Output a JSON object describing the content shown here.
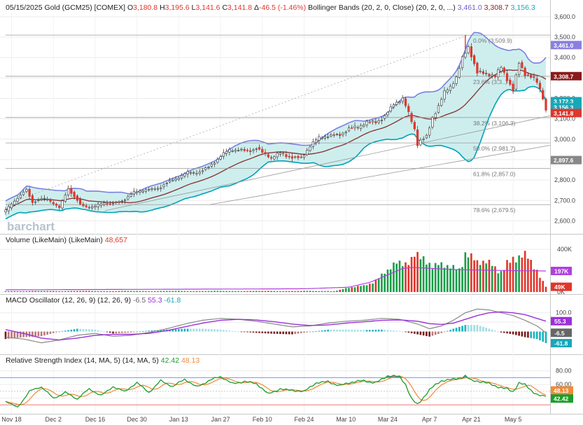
{
  "header": {
    "date": "05/15/2025",
    "symbol": "Gold (GCM25) [COMEX]",
    "o_label": "O",
    "o_value": "3,180.8",
    "h_label": "H",
    "h_value": "3,195.6",
    "l_label": "L",
    "l_value": "3,141.6",
    "c_label": "C",
    "c_value": "3,141.8",
    "chg_label": "Δ",
    "chg_value": "-46.5 (-1.46%)",
    "bb_title": "Bollinger Bands (20, 2, 0, Close)",
    "bb_params": "(20, 2, 0, ...)",
    "bb_upper": "3,461.0",
    "bb_mid": "3,308.7",
    "bb_lower": "3,156.3"
  },
  "logo": "barchart",
  "colors": {
    "up": "#1a9e4a",
    "down": "#e0362c",
    "band_fill": "#c9ecec",
    "band_upper": "#7b7fe0",
    "band_lower": "#00a3b8",
    "sma": "#8b3a3a",
    "vol_ma": "#b040e0",
    "macd_line": "#888888",
    "signal": "#9b30d9",
    "hist_pos": "#17b3c0",
    "hist_neg": "#7a1a1a",
    "rsi": "#1a9e2a",
    "rsi_ma": "#f08a3a"
  },
  "chart_data": [
    {
      "name": "price",
      "type": "candlestick",
      "y_ticks": [
        "3,600.0",
        "3,500.0",
        "3,400.0",
        "3,300.0",
        "3,200.0",
        "3,100.0",
        "3,000.0",
        "2,900.0",
        "2,800.0",
        "2,700.0",
        "2,600.0"
      ],
      "ylim": [
        2550,
        3620
      ],
      "x_ticks": [
        "Nov 18",
        "Dec 2",
        "Dec 16",
        "Dec 30",
        "Jan 13",
        "Jan 27",
        "Feb 10",
        "Feb 24",
        "Mar 10",
        "Mar 24",
        "Apr 7",
        "Apr 21",
        "May 5"
      ],
      "close_key": [
        [
          0,
          2640
        ],
        [
          3,
          2700
        ],
        [
          7,
          2760
        ],
        [
          9,
          2700
        ],
        [
          14,
          2700
        ],
        [
          18,
          2660
        ],
        [
          21,
          2770
        ],
        [
          25,
          2680
        ],
        [
          28,
          2660
        ],
        [
          30,
          2660
        ],
        [
          33,
          2690
        ],
        [
          36,
          2690
        ],
        [
          40,
          2710
        ],
        [
          43,
          2730
        ],
        [
          47,
          2750
        ],
        [
          50,
          2760
        ],
        [
          53,
          2785
        ],
        [
          57,
          2800
        ],
        [
          61,
          2830
        ],
        [
          64,
          2840
        ],
        [
          68,
          2870
        ],
        [
          72,
          2910
        ],
        [
          75,
          2940
        ],
        [
          78,
          2950
        ],
        [
          81,
          2950
        ],
        [
          84,
          2960
        ],
        [
          86,
          2930
        ],
        [
          89,
          2900
        ],
        [
          92,
          2930
        ],
        [
          96,
          2920
        ],
        [
          99,
          2910
        ],
        [
          102,
          2960
        ],
        [
          105,
          3000
        ],
        [
          108,
          3020
        ],
        [
          112,
          3030
        ],
        [
          115,
          3050
        ],
        [
          118,
          3050
        ],
        [
          121,
          3080
        ],
        [
          124,
          3090
        ],
        [
          127,
          3120
        ],
        [
          130,
          3170
        ],
        [
          133,
          3190
        ],
        [
          135,
          3120
        ],
        [
          137,
          3050
        ],
        [
          138,
          2980
        ],
        [
          139,
          3000
        ],
        [
          141,
          3020
        ],
        [
          143,
          3110
        ],
        [
          145,
          3160
        ],
        [
          147,
          3220
        ],
        [
          149,
          3250
        ],
        [
          151,
          3300
        ],
        [
          153,
          3400
        ],
        [
          155,
          3460
        ],
        [
          156,
          3420
        ],
        [
          158,
          3330
        ],
        [
          160,
          3320
        ],
        [
          162,
          3310
        ],
        [
          164,
          3300
        ],
        [
          166,
          3350
        ],
        [
          168,
          3300
        ],
        [
          170,
          3250
        ],
        [
          172,
          3380
        ],
        [
          174,
          3320
        ],
        [
          176,
          3300
        ],
        [
          178,
          3270
        ],
        [
          180,
          3200
        ],
        [
          181,
          3141.8
        ]
      ],
      "candle_count": 182,
      "bollinger": {
        "period": 20,
        "stddev": 2
      },
      "fib_levels": [
        {
          "label": "0.0% (3,509.9)",
          "value": 3509.9
        },
        {
          "label": "23.6% (3,3..)",
          "value": 3308.1
        },
        {
          "label": "38.2% (3,106.3)",
          "value": 3106.3
        },
        {
          "label": "50.0% (2,981.7)",
          "value": 2981.7
        },
        {
          "label": "61.8% (2,857.0)",
          "value": 2857.0
        },
        {
          "label": "78.6% (2,679.5)",
          "value": 2679.5
        }
      ],
      "price_tags": [
        {
          "label": "3,461.0",
          "value": 3461.0,
          "color": "#8a7fe0"
        },
        {
          "label": "3,308.7",
          "value": 3308.7,
          "color": "#8b1a1a"
        },
        {
          "label": "3,172.3",
          "value": 3172.3,
          "color": "#17a7b8"
        },
        {
          "label": "3,156.3",
          "value": 3156.3,
          "color": "#17a7b8"
        },
        {
          "label": "3,141.8",
          "value": 3141.8,
          "color": "#e0362c"
        },
        {
          "label": "2,897.6",
          "value": 2897.6,
          "color": "#888888"
        }
      ]
    },
    {
      "name": "volume",
      "type": "bar",
      "title": "Volume (LikeMain) (LikeMain)",
      "last_value": "48,657",
      "y_ticks": [
        "400K",
        "0K"
      ],
      "ylim": [
        0,
        440000
      ],
      "ma_tag": "197K",
      "vol_tag": "49K",
      "ma_value": 197000,
      "vol_value": 48657,
      "vol_key": [
        [
          0,
          8000
        ],
        [
          110,
          9000
        ],
        [
          120,
          60000
        ],
        [
          125,
          140000
        ],
        [
          130,
          230000
        ],
        [
          133,
          240000
        ],
        [
          137,
          390000
        ],
        [
          140,
          360000
        ],
        [
          143,
          200000
        ],
        [
          146,
          240000
        ],
        [
          149,
          230000
        ],
        [
          152,
          250000
        ],
        [
          154,
          410000
        ],
        [
          156,
          320000
        ],
        [
          158,
          260000
        ],
        [
          160,
          250000
        ],
        [
          163,
          240000
        ],
        [
          166,
          220000
        ],
        [
          168,
          300000
        ],
        [
          170,
          330000
        ],
        [
          172,
          320000
        ],
        [
          174,
          300000
        ],
        [
          176,
          250000
        ],
        [
          178,
          200000
        ],
        [
          181,
          48657
        ]
      ],
      "ma_key": [
        [
          0,
          20000
        ],
        [
          100,
          30000
        ],
        [
          115,
          45000
        ],
        [
          122,
          90000
        ],
        [
          128,
          160000
        ],
        [
          133,
          220000
        ],
        [
          136,
          230000
        ],
        [
          140,
          225000
        ],
        [
          150,
          210000
        ],
        [
          160,
          205000
        ],
        [
          170,
          200000
        ],
        [
          181,
          197000
        ]
      ]
    },
    {
      "name": "macd",
      "type": "histogram",
      "title": "MACD Oscillator (12, 26, 9) (12, 26, 9)",
      "macd_value": "-6.5",
      "signal_value": "55.3",
      "hist_value": "-61.8",
      "y_ticks": [
        "100.0",
        "50.0"
      ],
      "ylim": [
        -110,
        140
      ],
      "macd_key": [
        [
          0,
          -30
        ],
        [
          6,
          -40
        ],
        [
          12,
          -60
        ],
        [
          18,
          -45
        ],
        [
          24,
          -20
        ],
        [
          30,
          -10
        ],
        [
          36,
          -25
        ],
        [
          42,
          -20
        ],
        [
          48,
          -5
        ],
        [
          54,
          15
        ],
        [
          60,
          40
        ],
        [
          66,
          60
        ],
        [
          72,
          70
        ],
        [
          78,
          65
        ],
        [
          84,
          55
        ],
        [
          90,
          40
        ],
        [
          96,
          25
        ],
        [
          102,
          30
        ],
        [
          108,
          45
        ],
        [
          114,
          55
        ],
        [
          120,
          60
        ],
        [
          126,
          70
        ],
        [
          132,
          65
        ],
        [
          138,
          40
        ],
        [
          142,
          15
        ],
        [
          146,
          30
        ],
        [
          150,
          60
        ],
        [
          154,
          100
        ],
        [
          158,
          120
        ],
        [
          162,
          115
        ],
        [
          166,
          100
        ],
        [
          170,
          85
        ],
        [
          174,
          60
        ],
        [
          178,
          30
        ],
        [
          181,
          -6.5
        ]
      ],
      "signal_key": [
        [
          0,
          10
        ],
        [
          6,
          -10
        ],
        [
          12,
          -35
        ],
        [
          18,
          -45
        ],
        [
          24,
          -35
        ],
        [
          30,
          -20
        ],
        [
          36,
          -15
        ],
        [
          42,
          -15
        ],
        [
          48,
          -10
        ],
        [
          54,
          5
        ],
        [
          60,
          25
        ],
        [
          66,
          45
        ],
        [
          72,
          60
        ],
        [
          78,
          65
        ],
        [
          84,
          62
        ],
        [
          90,
          52
        ],
        [
          96,
          40
        ],
        [
          102,
          32
        ],
        [
          108,
          35
        ],
        [
          114,
          45
        ],
        [
          120,
          52
        ],
        [
          126,
          60
        ],
        [
          132,
          62
        ],
        [
          138,
          55
        ],
        [
          142,
          42
        ],
        [
          146,
          38
        ],
        [
          150,
          45
        ],
        [
          154,
          65
        ],
        [
          158,
          85
        ],
        [
          162,
          100
        ],
        [
          166,
          105
        ],
        [
          170,
          100
        ],
        [
          174,
          90
        ],
        [
          178,
          70
        ],
        [
          181,
          55.3
        ]
      ]
    },
    {
      "name": "rsi",
      "type": "line",
      "title": "Relative Strength Index (14, MA, 5) (14, MA, 5)",
      "rsi_value": "42.42",
      "ma_value": "48.13",
      "y_ticks": [
        "80.00",
        "60.00",
        "40.00"
      ],
      "ylim": [
        20,
        90
      ],
      "overbought": 70,
      "oversold": 30,
      "rsi_key": [
        [
          0,
          35
        ],
        [
          4,
          28
        ],
        [
          8,
          50
        ],
        [
          12,
          55
        ],
        [
          16,
          40
        ],
        [
          20,
          50
        ],
        [
          24,
          38
        ],
        [
          28,
          52
        ],
        [
          32,
          45
        ],
        [
          36,
          58
        ],
        [
          40,
          48
        ],
        [
          44,
          62
        ],
        [
          48,
          50
        ],
        [
          52,
          66
        ],
        [
          56,
          55
        ],
        [
          60,
          68
        ],
        [
          64,
          58
        ],
        [
          68,
          65
        ],
        [
          72,
          70
        ],
        [
          76,
          62
        ],
        [
          80,
          66
        ],
        [
          84,
          60
        ],
        [
          88,
          45
        ],
        [
          92,
          55
        ],
        [
          96,
          52
        ],
        [
          100,
          48
        ],
        [
          104,
          62
        ],
        [
          108,
          66
        ],
        [
          112,
          58
        ],
        [
          116,
          62
        ],
        [
          120,
          66
        ],
        [
          124,
          64
        ],
        [
          128,
          72
        ],
        [
          132,
          70
        ],
        [
          134,
          60
        ],
        [
          136,
          40
        ],
        [
          138,
          32
        ],
        [
          140,
          42
        ],
        [
          142,
          52
        ],
        [
          146,
          64
        ],
        [
          150,
          68
        ],
        [
          154,
          74
        ],
        [
          156,
          66
        ],
        [
          160,
          62
        ],
        [
          164,
          58
        ],
        [
          168,
          55
        ],
        [
          170,
          50
        ],
        [
          172,
          62
        ],
        [
          174,
          58
        ],
        [
          176,
          50
        ],
        [
          178,
          45
        ],
        [
          181,
          42.42
        ]
      ]
    }
  ]
}
